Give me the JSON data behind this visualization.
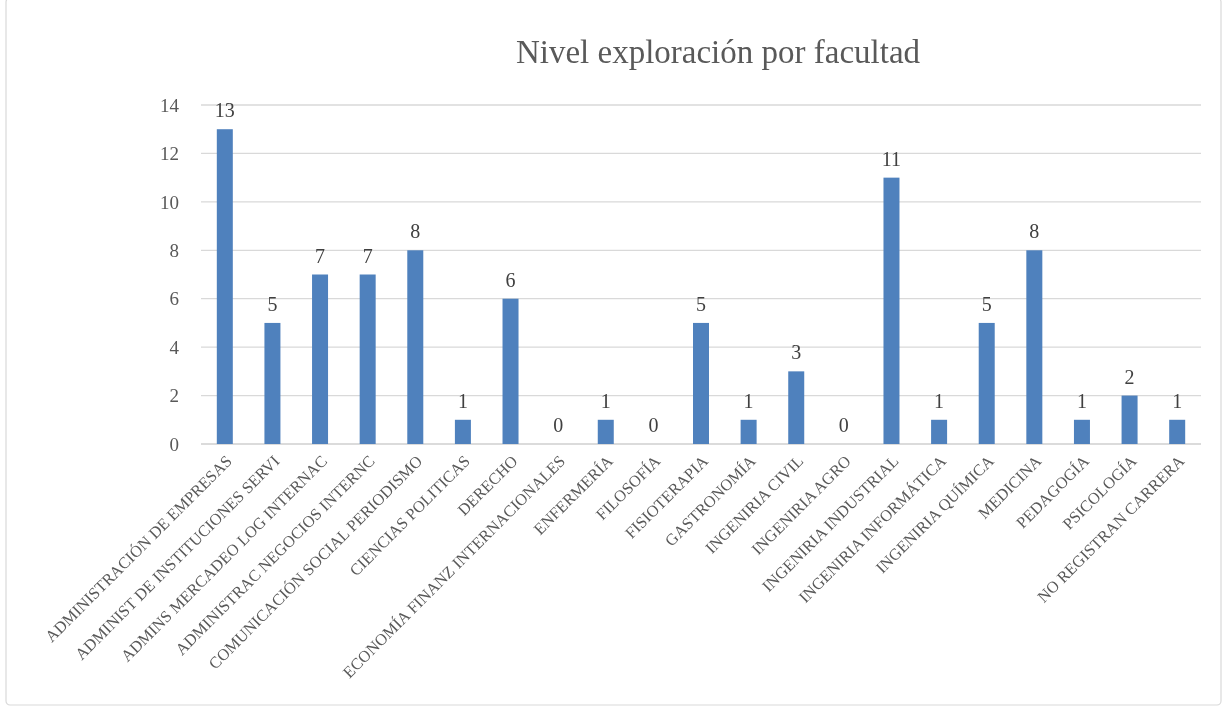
{
  "chart_data": {
    "type": "bar",
    "title": "Nivel exploración por facultad",
    "categories": [
      "ADMINISTRACIÓN DE EMPRESAS",
      "ADMINIST DE INSTITUCIONES SERVI",
      "ADMINS MERCADEO LOG INTERNAC",
      "ADMINISTRAC NEGOCIOS INTERNC",
      "COMUNICACIÓN SOCIAL PERIODISMO",
      "CIENCIAS POLITICAS",
      "DERECHO",
      "ECONOMÍA FINANZ INTERNACIONALES",
      "ENFERMERÍA",
      "FILOSOFÍA",
      "FISIOTERAPIA",
      "GASTRONOMÍA",
      "INGENIRIA CIVIL",
      "INGENIRIA AGRO",
      "INGENIRIA INDUSTRIAL",
      "INGENIRIA INFORMÁTICA",
      "INGENIRIA QUÍMICA",
      "MEDICINA",
      "PEDAGOGÍA",
      "PSICOLOGÍA",
      "NO REGISTRAN CARRERA"
    ],
    "values": [
      13,
      5,
      7,
      7,
      8,
      1,
      6,
      0,
      1,
      0,
      5,
      1,
      3,
      0,
      11,
      1,
      5,
      8,
      1,
      2,
      1
    ],
    "color": "#4f81bd",
    "ylim": [
      0,
      14
    ],
    "yticks": [
      0,
      2,
      4,
      6,
      8,
      10,
      12,
      14
    ],
    "grid": "y",
    "data_labels": true
  }
}
